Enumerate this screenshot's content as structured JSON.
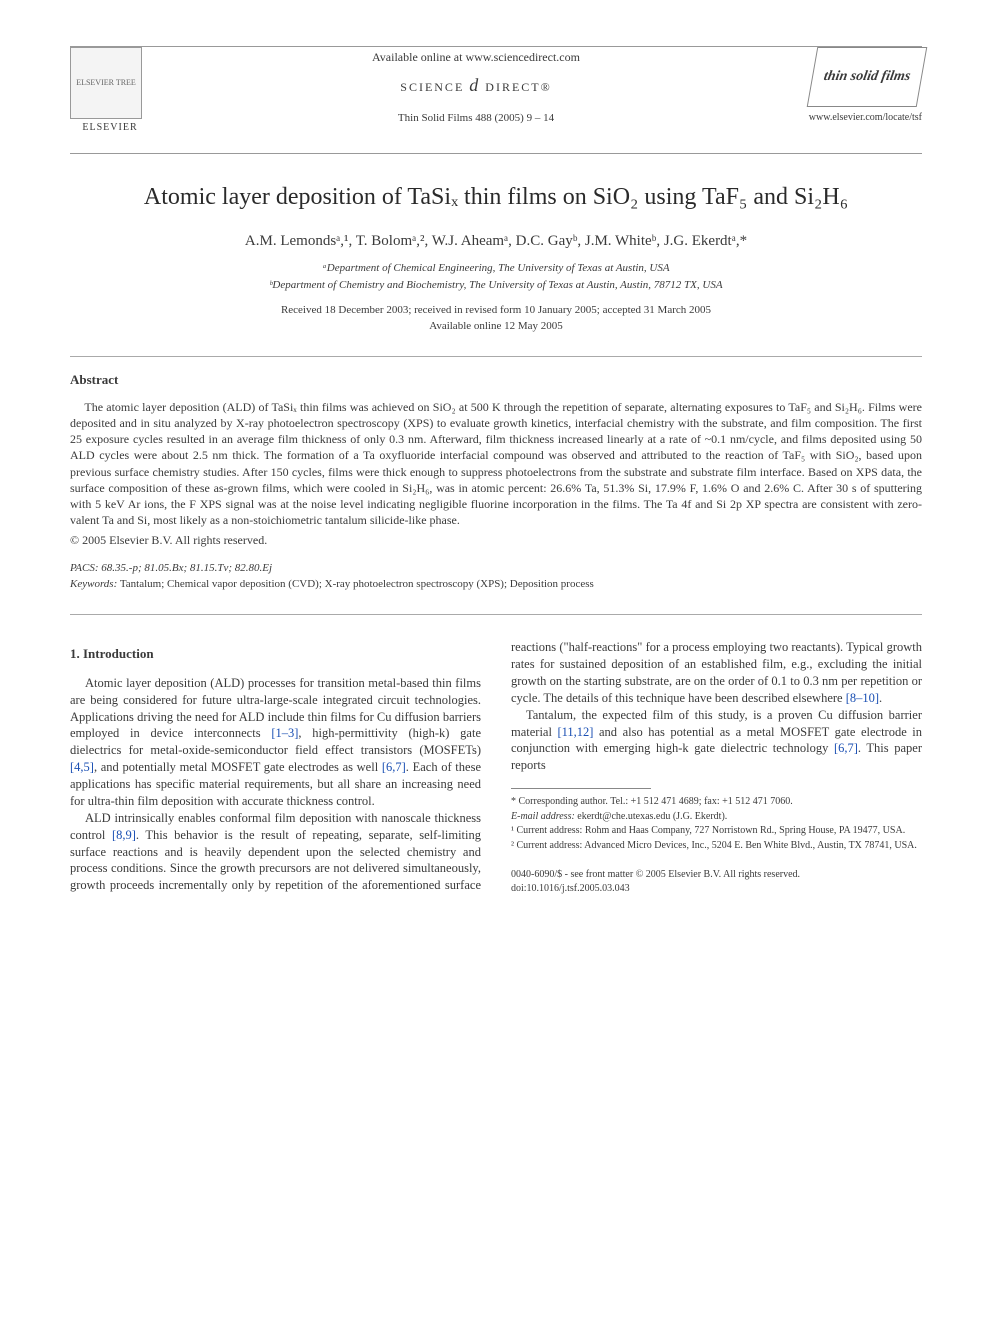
{
  "header": {
    "available_online": "Available online at www.sciencedirect.com",
    "science_direct": "SCIENCE",
    "science_direct_d": "d",
    "science_direct_tail": "DIRECT®",
    "citation": "Thin Solid Films 488 (2005) 9 – 14",
    "publisher_name": "ELSEVIER",
    "journal_logo_text": "thin solid films",
    "journal_url": "www.elsevier.com/locate/tsf"
  },
  "title": "Atomic layer deposition of TaSiₓ thin films on SiO₂ using TaF₅ and Si₂H₆",
  "authors": "A.M. Lemondsᵃ,¹, T. Bolomᵃ,², W.J. Aheamᵃ, D.C. Gayᵇ, J.M. Whiteᵇ, J.G. Ekerdtᵃ,*",
  "affils": {
    "a": "ᵃDepartment of Chemical Engineering, The University of Texas at Austin, USA",
    "b": "ᵇDepartment of Chemistry and Biochemistry, The University of Texas at Austin, Austin, 78712 TX, USA"
  },
  "dates": {
    "received": "Received 18 December 2003; received in revised form 10 January 2005; accepted 31 March 2005",
    "online": "Available online 12 May 2005"
  },
  "abstract": {
    "label": "Abstract",
    "body": "The atomic layer deposition (ALD) of TaSiₓ thin films was achieved on SiO₂ at 500 K through the repetition of separate, alternating exposures to TaF₅ and Si₂H₆. Films were deposited and in situ analyzed by X-ray photoelectron spectroscopy (XPS) to evaluate growth kinetics, interfacial chemistry with the substrate, and film composition. The first 25 exposure cycles resulted in an average film thickness of only 0.3 nm. Afterward, film thickness increased linearly at a rate of ~0.1 nm/cycle, and films deposited using 50 ALD cycles were about 2.5 nm thick. The formation of a Ta oxyfluoride interfacial compound was observed and attributed to the reaction of TaF₅ with SiO₂, based upon previous surface chemistry studies. After 150 cycles, films were thick enough to suppress photoelectrons from the substrate and substrate film interface. Based on XPS data, the surface composition of these as-grown films, which were cooled in Si₂H₆, was in atomic percent: 26.6% Ta, 51.3% Si, 17.9% F, 1.6% O and 2.6% C. After 30 s of sputtering with 5 keV Ar ions, the F XPS signal was at the noise level indicating negligible fluorine incorporation in the films. The Ta 4f and Si 2p XP spectra are consistent with zero-valent Ta and Si, most likely as a non-stoichiometric tantalum silicide-like phase.",
    "copyright": "© 2005 Elsevier B.V. All rights reserved."
  },
  "pacs": {
    "label": "PACS:",
    "value": "68.35.-p; 81.05.Bx; 81.15.Tv; 82.80.Ej"
  },
  "keywords": {
    "label": "Keywords:",
    "value": "Tantalum; Chemical vapor deposition (CVD); X-ray photoelectron spectroscopy (XPS); Deposition process"
  },
  "intro": {
    "heading": "1. Introduction",
    "p1_a": "Atomic layer deposition (ALD) processes for transition metal-based thin films are being considered for future ultra-large-scale integrated circuit technologies. Applications driving the need for ALD include thin films for Cu diffusion barriers employed in device interconnects ",
    "ref1": "[1–3]",
    "p1_b": ", high-permittivity (high-k) gate dielectrics for metal-oxide-semiconductor field effect transistors (MOSFETs) ",
    "ref2": "[4,5]",
    "p1_c": ", and potentially metal MOSFET gate electrodes as well ",
    "ref3": "[6,7]",
    "p1_d": ". Each of these applications has specific material require­ments, but all share an increasing need for ultra-thin film deposition with accurate thickness control.",
    "p2_a": "ALD intrinsically enables conformal film deposition with nanoscale thickness control ",
    "ref4": "[8,9]",
    "p2_b": ". This behavior is the result of repeating, separate, self-limiting surface reactions and is heavily dependent upon the selected chemistry and process conditions. Since the growth precursors are not delivered simultaneously, growth proceeds incrementally only by repetition of the aforementioned surface reactions (\"half-reactions\" for a process employing two reactants). Typical growth rates for sustained deposition of an established film, e.g., excluding the initial growth on the starting substrate, are on the order of 0.1 to 0.3 nm per repetition or cycle. The details of this technique have been described elsewhere ",
    "ref5": "[8–10]",
    "p2_c": ".",
    "p3_a": "Tantalum, the expected film of this study, is a proven Cu diffusion barrier material ",
    "ref6": "[11,12]",
    "p3_b": " and also has potential as a metal MOSFET gate electrode in conjunction with emerging high-k gate dielectric technology ",
    "ref7": "[6,7]",
    "p3_c": ". This paper reports"
  },
  "footnotes": {
    "corr": "* Corresponding author. Tel.: +1 512 471 4689; fax: +1 512 471 7060.",
    "email_label": "E-mail address:",
    "email": "ekerdt@che.utexas.edu (J.G. Ekerdt).",
    "f1": "¹ Current address: Rohm and Haas Company, 727 Norristown Rd., Spring House, PA 19477, USA.",
    "f2": "² Current address: Advanced Micro Devices, Inc., 5204 E. Ben White Blvd., Austin, TX 78741, USA."
  },
  "bottom": {
    "line1": "0040-6090/$ - see front matter © 2005 Elsevier B.V. All rights reserved.",
    "line2": "doi:10.1016/j.tsf.2005.03.043"
  },
  "colors": {
    "text": "#3a3a3a",
    "link": "#1a4fb3",
    "rule": "#999999",
    "bg": "#ffffff"
  }
}
